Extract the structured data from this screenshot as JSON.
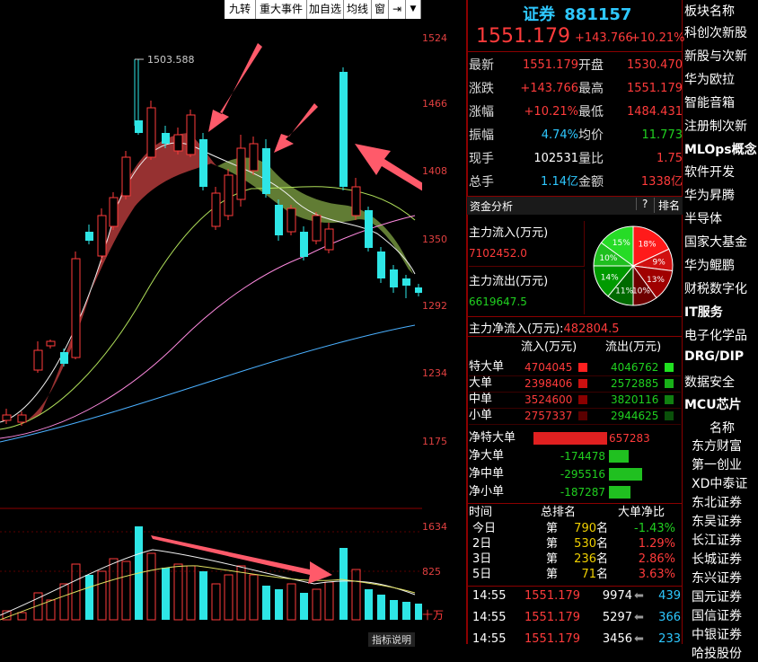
{
  "toolbar": {
    "buttons": [
      "九转",
      "重大事件",
      "加自选",
      "均线",
      "窗"
    ]
  },
  "axis": {
    "price_ticks": [
      "1524",
      "1466",
      "1408",
      "1350",
      "1292",
      "1234",
      "1175"
    ],
    "volume_ticks": [
      "1634",
      "825"
    ],
    "volume_unit": "十万",
    "bottom_label": "指标说明"
  },
  "chart_annotations": {
    "high_label": "1503.588"
  },
  "quote": {
    "name": "证券",
    "code": "881157",
    "price": "1551.179",
    "change": "+143.766",
    "change_pct": "+10.21%",
    "rows": [
      {
        "l1": "最新",
        "v1": "1551.179",
        "l2": "开盘",
        "v2": "1530.470"
      },
      {
        "l1": "涨跌",
        "v1": "+143.766",
        "l2": "最高",
        "v2": "1551.179"
      },
      {
        "l1": "涨幅",
        "v1": "+10.21%",
        "l2": "最低",
        "v2": "1484.431"
      },
      {
        "l1": "振幅",
        "v1": "4.74%",
        "l2": "均价",
        "v2": "11.773"
      },
      {
        "l1": "现手",
        "v1": "102531",
        "l2": "量比",
        "v2": "1.75"
      },
      {
        "l1": "总手",
        "v1": "1.14亿",
        "l2": "金额",
        "v2": "1338亿"
      }
    ]
  },
  "capital": {
    "tab": "资金分析",
    "help": "?",
    "rank": "排名",
    "inflow_label": "主力流入(万元)",
    "inflow_value": "7102452.0",
    "outflow_label": "主力流出(万元)",
    "outflow_value": "6619647.5",
    "net_label": "主力净流入(万元):",
    "net_value": "482804.5",
    "pie": [
      {
        "label": "18%",
        "value": 18,
        "color": "#ff1a1a"
      },
      {
        "label": "9%",
        "value": 9,
        "color": "#d01010"
      },
      {
        "label": "13%",
        "value": 13,
        "color": "#a00000"
      },
      {
        "label": "10%",
        "value": 10,
        "color": "#6e0000"
      },
      {
        "label": "11%",
        "value": 11,
        "color": "#006a00"
      },
      {
        "label": "14%",
        "value": 14,
        "color": "#009a00"
      },
      {
        "label": "10%",
        "value": 10,
        "color": "#1fbf1f"
      },
      {
        "label": "15%",
        "value": 15,
        "color": "#26dc26"
      }
    ],
    "flow_header": {
      "in": "流入(万元)",
      "out": "流出(万元)"
    },
    "flows": [
      {
        "name": "特大单",
        "in": "4704045",
        "out": "4046762"
      },
      {
        "name": "大单",
        "in": "2398406",
        "out": "2572885"
      },
      {
        "name": "中单",
        "in": "3524600",
        "out": "3820116"
      },
      {
        "name": "小单",
        "in": "2757337",
        "out": "2944625"
      }
    ],
    "net": [
      {
        "name": "净特大单",
        "value": "657283",
        "sign": 1,
        "ratio": 1.0
      },
      {
        "name": "净大单",
        "value": "-174478",
        "sign": -1,
        "ratio": 0.27
      },
      {
        "name": "净中单",
        "value": "-295516",
        "sign": -1,
        "ratio": 0.45
      },
      {
        "name": "净小单",
        "value": "-187287",
        "sign": -1,
        "ratio": 0.29
      }
    ],
    "rank_header": {
      "time": "时间",
      "total": "总排名",
      "net": "大单净比"
    },
    "ranks": [
      {
        "period": "今日",
        "pre": "第",
        "rank": "790",
        "suf": "名",
        "pct": "-1.43%"
      },
      {
        "period": "2日",
        "pre": "第",
        "rank": "530",
        "suf": "名",
        "pct": "1.29%"
      },
      {
        "period": "3日",
        "pre": "第",
        "rank": "236",
        "suf": "名",
        "pct": "2.86%"
      },
      {
        "period": "5日",
        "pre": "第",
        "rank": "71",
        "suf": "名",
        "pct": "3.63%"
      }
    ]
  },
  "ticks": [
    {
      "time": "14:55",
      "price": "1551.179",
      "vol": "9974",
      "num": "439"
    },
    {
      "time": "14:55",
      "price": "1551.179",
      "vol": "5297",
      "num": "366"
    },
    {
      "time": "14:55",
      "price": "1551.179",
      "vol": "3456",
      "num": "233"
    }
  ],
  "sectors": {
    "header": "板块名称",
    "items": [
      "科创次新股",
      "新股与次新",
      "华为欧拉",
      "智能音箱",
      "注册制次新",
      "MLOps概念",
      "软件开发",
      "华为昇腾",
      "半导体",
      "国家大基金",
      "华为鲲鹏",
      "财税数字化",
      "IT服务",
      "电子化学品",
      "DRG/DIP",
      "数据安全",
      "MCU芯片"
    ]
  },
  "stocks": {
    "header": "名称",
    "items": [
      "东方财富",
      "第一创业",
      "XD中泰证",
      "东北证券",
      "东吴证券",
      "长江证券",
      "长城证券",
      "东兴证券",
      "国元证券",
      "国信证券",
      "中银证券",
      "哈投股份"
    ]
  },
  "colors": {
    "up": "#ff3b3b",
    "down": "#2ee6e6",
    "border": "#8b0000"
  }
}
